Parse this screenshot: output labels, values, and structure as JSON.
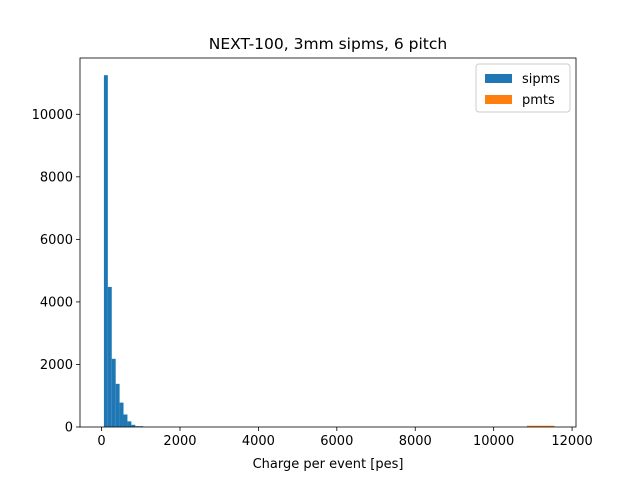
{
  "chart_data": {
    "type": "bar",
    "title": "NEXT-100, 3mm sipms, 6 pitch",
    "xlabel": "Charge per event [pes]",
    "ylabel": "",
    "xlim": [
      -550,
      12100
    ],
    "ylim": [
      0,
      11800
    ],
    "xticks": [
      0,
      2000,
      4000,
      6000,
      8000,
      10000,
      12000
    ],
    "xtick_labels": [
      "0",
      "2000",
      "4000",
      "6000",
      "8000",
      "10000",
      "12000"
    ],
    "yticks": [
      0,
      2000,
      4000,
      6000,
      8000,
      10000
    ],
    "ytick_labels": [
      "0",
      "2000",
      "4000",
      "6000",
      "8000",
      "10000"
    ],
    "grid": false,
    "legend_position": "top-right",
    "series": [
      {
        "name": "sipms",
        "color": "#1f77b4",
        "bins": [
          {
            "x0": 60,
            "x1": 160,
            "count": 11250
          },
          {
            "x0": 160,
            "x1": 260,
            "count": 4480
          },
          {
            "x0": 260,
            "x1": 360,
            "count": 2180
          },
          {
            "x0": 360,
            "x1": 460,
            "count": 1380
          },
          {
            "x0": 460,
            "x1": 560,
            "count": 780
          },
          {
            "x0": 560,
            "x1": 660,
            "count": 400
          },
          {
            "x0": 660,
            "x1": 760,
            "count": 180
          },
          {
            "x0": 760,
            "x1": 860,
            "count": 70
          },
          {
            "x0": 860,
            "x1": 960,
            "count": 25
          },
          {
            "x0": 960,
            "x1": 1060,
            "count": 8
          }
        ]
      },
      {
        "name": "pmts",
        "color": "#ff7f0e",
        "bins": [
          {
            "x0": 10850,
            "x1": 11550,
            "count": 40
          }
        ]
      }
    ]
  }
}
